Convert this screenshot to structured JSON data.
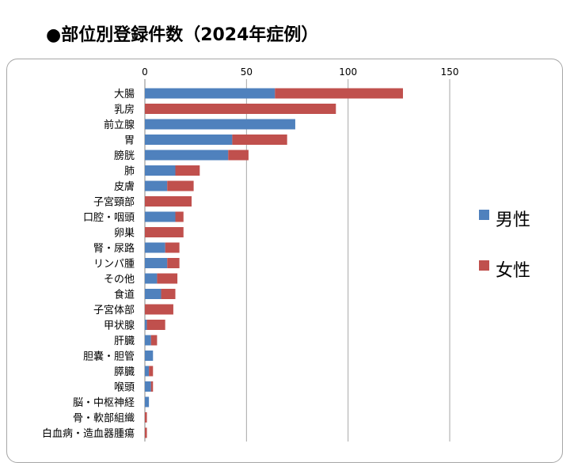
{
  "title": "●部位別登録件数（2024年症例）",
  "colors": {
    "male": "#4f81bd",
    "female": "#c0504d",
    "grid": "#a6a6a6"
  },
  "chart_data": {
    "type": "bar",
    "orientation": "horizontal",
    "stacked": true,
    "categories": [
      "大腸",
      "乳房",
      "前立腺",
      "胃",
      "膀胱",
      "肺",
      "皮膚",
      "子宮頸部",
      "口腔・咽頭",
      "卵巣",
      "腎・尿路",
      "リンパ腫",
      "その他",
      "食道",
      "子宮体部",
      "甲状腺",
      "肝臓",
      "胆嚢・胆管",
      "膵臓",
      "喉頭",
      "脳・中枢神経",
      "骨・軟部組織",
      "白血病・造血器腫瘍"
    ],
    "series": [
      {
        "name": "男性",
        "color": "#4f81bd",
        "values": [
          64,
          0,
          74,
          43,
          41,
          15,
          11,
          0,
          15,
          0,
          10,
          11,
          6,
          8,
          0,
          1,
          3,
          4,
          2,
          3,
          2,
          0,
          0
        ]
      },
      {
        "name": "女性",
        "color": "#c0504d",
        "values": [
          63,
          94,
          0,
          27,
          10,
          12,
          13,
          23,
          4,
          19,
          7,
          6,
          10,
          7,
          14,
          9,
          3,
          0,
          2,
          1,
          0,
          1,
          1
        ]
      }
    ],
    "xlim": [
      0,
      150
    ],
    "xticks": [
      0,
      50,
      100,
      150
    ],
    "x_axis_position": "top",
    "grid": true,
    "legend_position": "right"
  }
}
